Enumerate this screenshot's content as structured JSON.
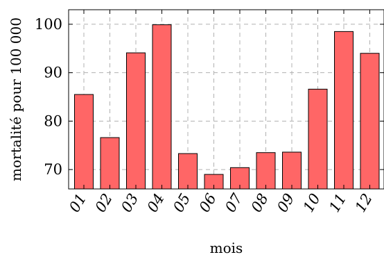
{
  "chart_data": {
    "type": "bar",
    "xlabel": "mois",
    "ylabel": "mortalité pour 100 000",
    "categories": [
      "01",
      "02",
      "03",
      "04",
      "05",
      "06",
      "07",
      "08",
      "09",
      "10",
      "11",
      "12"
    ],
    "values": [
      85.5,
      76.6,
      94.1,
      99.9,
      73.3,
      69.0,
      70.4,
      73.5,
      73.6,
      86.6,
      98.5,
      94.0
    ],
    "ylim": [
      66,
      103
    ],
    "yticks": [
      70,
      80,
      90,
      100
    ],
    "grid": true,
    "bar_color": "#ff6666",
    "bar_stroke": "#000000"
  }
}
